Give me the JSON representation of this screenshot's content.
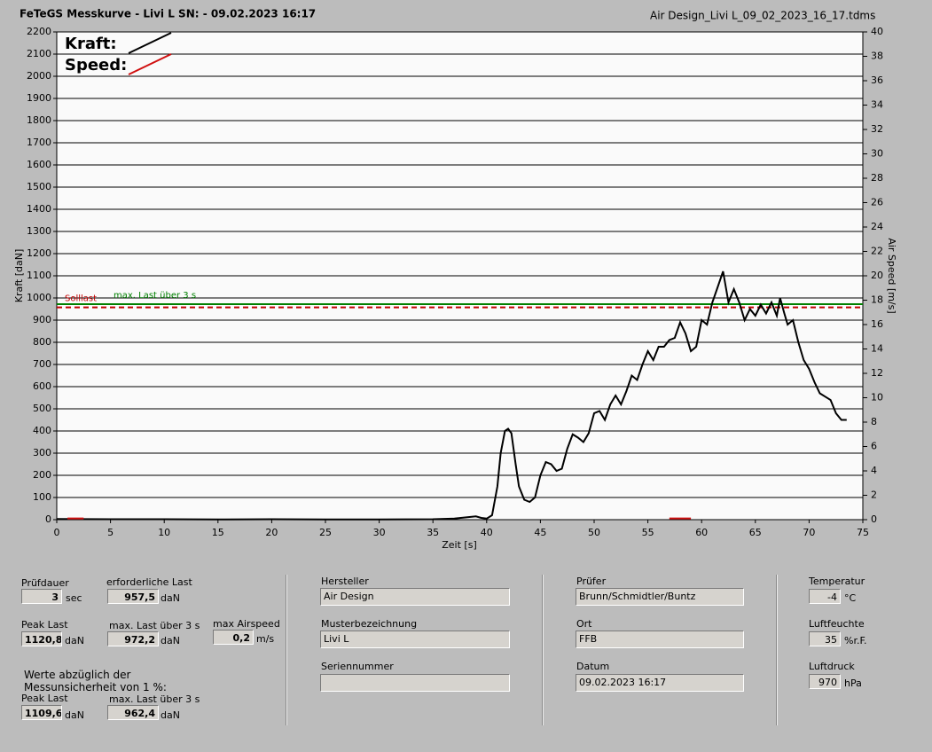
{
  "chart_data": {
    "type": "line",
    "title": "FeTeGS Messkurve - Livi L  SN:  - 09.02.2023 16:17",
    "file": "Air Design_Livi L_09_02_2023_16_17.tdms",
    "x_label": "Zeit [s]",
    "y_label": "Kraft [daN]",
    "y2_label": "Air Speed [m/s]",
    "xlim": [
      0,
      75
    ],
    "xticks": [
      0,
      5,
      10,
      15,
      20,
      25,
      30,
      35,
      40,
      45,
      50,
      55,
      60,
      65,
      70,
      75
    ],
    "ylim": [
      0,
      2200
    ],
    "yticks": [
      0,
      100,
      200,
      300,
      400,
      500,
      600,
      700,
      800,
      900,
      1000,
      1100,
      1200,
      1300,
      1400,
      1500,
      1600,
      1700,
      1800,
      1900,
      2000,
      2100,
      2200
    ],
    "y2lim": [
      0,
      40
    ],
    "y2ticks": [
      0,
      2,
      4,
      6,
      8,
      10,
      12,
      14,
      16,
      18,
      20,
      22,
      24,
      26,
      28,
      30,
      32,
      34,
      36,
      38,
      40
    ],
    "grid": true,
    "legend": "upper left",
    "reference_lines": [
      {
        "label": "Solllast",
        "value": 957.5,
        "color": "#c00000",
        "style": "dashed"
      },
      {
        "label": "max. Last über  3 s",
        "value": 972.2,
        "color": "#008000",
        "style": "solid"
      }
    ],
    "series": [
      {
        "name": "Kraft:",
        "color": "#000000",
        "x": [
          0,
          5,
          10,
          15,
          20,
          25,
          30,
          35,
          37,
          38,
          39,
          39.5,
          40,
          40.5,
          41,
          41.3,
          41.7,
          42,
          42.3,
          42.7,
          43,
          43.5,
          44,
          44.5,
          45,
          45.5,
          46,
          46.5,
          47,
          47.5,
          48,
          48.5,
          49,
          49.5,
          50,
          50.5,
          51,
          51.5,
          52,
          52.5,
          53,
          53.5,
          54,
          54.5,
          55,
          55.5,
          56,
          56.5,
          57,
          57.5,
          58,
          58.5,
          59,
          59.5,
          60,
          60.5,
          61,
          61.5,
          62,
          62.5,
          63,
          63.5,
          64,
          64.5,
          65,
          65.5,
          66,
          66.5,
          67,
          67.3,
          67.7,
          68,
          68.5,
          69,
          69.5,
          70,
          70.5,
          71,
          71.5,
          72,
          72.5,
          73,
          73.5
        ],
        "values": [
          3,
          2,
          2,
          1,
          2,
          1,
          1,
          2,
          5,
          10,
          15,
          8,
          5,
          20,
          150,
          300,
          400,
          410,
          390,
          250,
          150,
          90,
          80,
          100,
          200,
          260,
          250,
          220,
          230,
          320,
          385,
          370,
          350,
          390,
          480,
          490,
          450,
          520,
          560,
          520,
          580,
          650,
          630,
          700,
          760,
          720,
          780,
          780,
          810,
          820,
          890,
          840,
          760,
          780,
          900,
          880,
          980,
          1050,
          1120,
          980,
          1040,
          980,
          900,
          950,
          920,
          970,
          930,
          980,
          920,
          1000,
          930,
          880,
          900,
          800,
          720,
          680,
          620,
          570,
          555,
          540,
          480,
          450,
          450
        ]
      },
      {
        "name": "Speed:",
        "color": "#d01010",
        "axis": "y2",
        "x": [
          1,
          2.5,
          30,
          57,
          59
        ],
        "values": [
          0.1,
          0.1,
          null,
          0.1,
          0.1
        ]
      }
    ]
  },
  "panel": {
    "fields": [
      {
        "label": "Prüfdauer",
        "value": "3",
        "unit": "sec"
      },
      {
        "label": "erforderliche Last",
        "value": "957,5",
        "unit": "daN"
      },
      {
        "label": "Peak Last",
        "value": "1120,8",
        "unit": "daN"
      },
      {
        "label": "max. Last über  3 s",
        "value": "972,2",
        "unit": "daN"
      },
      {
        "label": "max Airspeed",
        "value": "0,2",
        "unit": "m/s"
      },
      {
        "label": "Peak Last",
        "value": "1109,6",
        "unit": "daN"
      },
      {
        "label": "max. Last über  3 s",
        "value": "962,4",
        "unit": "daN"
      },
      {
        "label": "Hersteller",
        "value": "Air Design"
      },
      {
        "label": "Musterbezeichnung",
        "value": "Livi L"
      },
      {
        "label": "Seriennummer"
      },
      {
        "label": "Prüfer",
        "value": "Brunn/Schmidtler/Buntz"
      },
      {
        "label": "Ort",
        "value": "FFB"
      },
      {
        "label": "Datum",
        "value": "09.02.2023 16:17"
      },
      {
        "label": "Temperatur",
        "value": "-4",
        "unit": "°C"
      },
      {
        "label": "Luftfeuchte",
        "value": "35",
        "unit": "%r.F."
      },
      {
        "label": "Luftdruck",
        "value": "970",
        "unit": "hPa"
      }
    ],
    "note": [
      "Werte abzüglich der",
      "Messunsicherheit von 1  %:"
    ]
  }
}
